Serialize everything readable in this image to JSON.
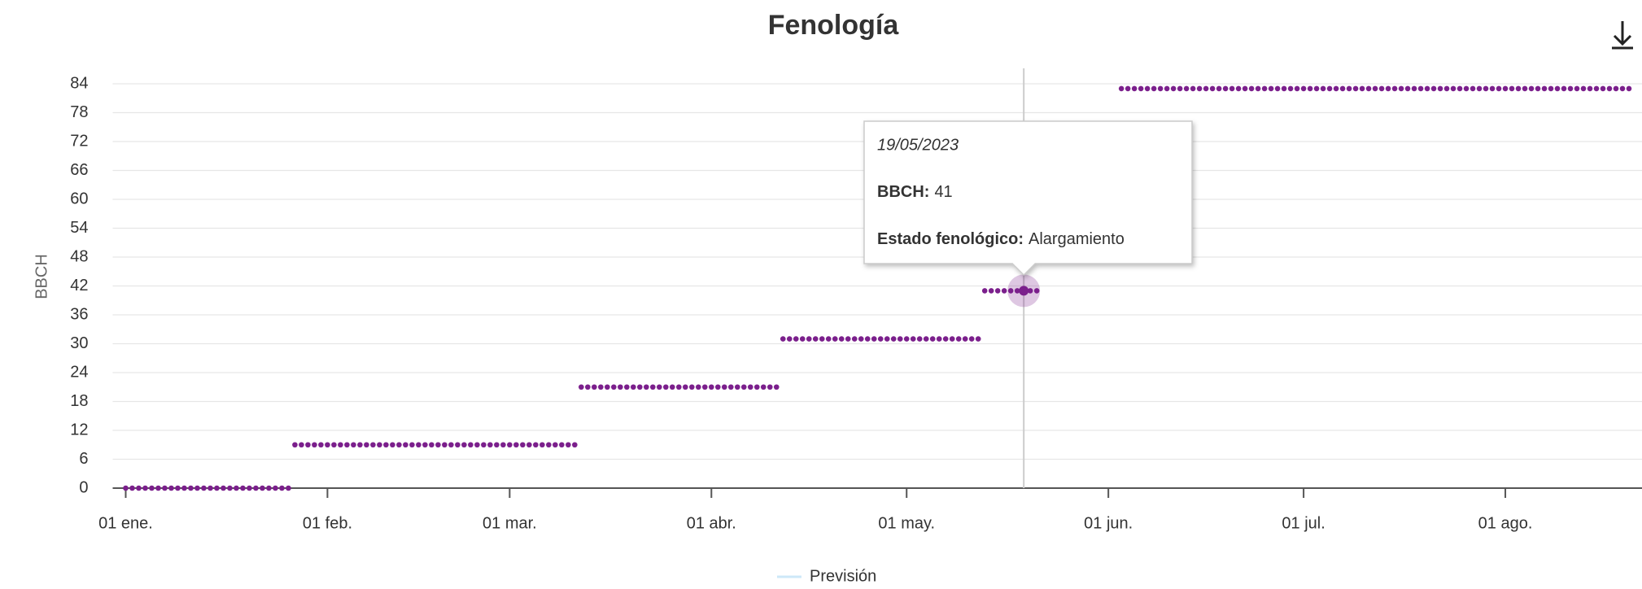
{
  "chart_data": {
    "type": "scatter",
    "title": "Fenología",
    "y_label": "BBCH",
    "series": [
      {
        "color": "#7b1f8c",
        "x": [
          "2023-01-01",
          "2023-01-02",
          "2023-01-03",
          "2023-01-04",
          "2023-01-05",
          "2023-01-06",
          "2023-01-07",
          "2023-01-08",
          "2023-01-09",
          "2023-01-10",
          "2023-01-11",
          "2023-01-12",
          "2023-01-13",
          "2023-01-14",
          "2023-01-15",
          "2023-01-16",
          "2023-01-17",
          "2023-01-18",
          "2023-01-19",
          "2023-01-20",
          "2023-01-21",
          "2023-01-22",
          "2023-01-23",
          "2023-01-24",
          "2023-01-25",
          "2023-01-26",
          "2023-01-27",
          "2023-01-28",
          "2023-01-29",
          "2023-01-30",
          "2023-01-31",
          "2023-02-01",
          "2023-02-02",
          "2023-02-03",
          "2023-02-04",
          "2023-02-05",
          "2023-02-06",
          "2023-02-07",
          "2023-02-08",
          "2023-02-09",
          "2023-02-10",
          "2023-02-11",
          "2023-02-12",
          "2023-02-13",
          "2023-02-14",
          "2023-02-15",
          "2023-02-16",
          "2023-02-17",
          "2023-02-18",
          "2023-02-19",
          "2023-02-20",
          "2023-02-21",
          "2023-02-22",
          "2023-02-23",
          "2023-02-24",
          "2023-02-25",
          "2023-02-26",
          "2023-02-27",
          "2023-02-28",
          "2023-03-01",
          "2023-03-02",
          "2023-03-03",
          "2023-03-04",
          "2023-03-05",
          "2023-03-06",
          "2023-03-07",
          "2023-03-08",
          "2023-03-09",
          "2023-03-10",
          "2023-03-11",
          "2023-03-12",
          "2023-03-13",
          "2023-03-14",
          "2023-03-15",
          "2023-03-16",
          "2023-03-17",
          "2023-03-18",
          "2023-03-19",
          "2023-03-20",
          "2023-03-21",
          "2023-03-22",
          "2023-03-23",
          "2023-03-24",
          "2023-03-25",
          "2023-03-26",
          "2023-03-27",
          "2023-03-28",
          "2023-03-29",
          "2023-03-30",
          "2023-03-31",
          "2023-04-01",
          "2023-04-02",
          "2023-04-03",
          "2023-04-04",
          "2023-04-05",
          "2023-04-06",
          "2023-04-07",
          "2023-04-08",
          "2023-04-09",
          "2023-04-10",
          "2023-04-11",
          "2023-04-12",
          "2023-04-13",
          "2023-04-14",
          "2023-04-15",
          "2023-04-16",
          "2023-04-17",
          "2023-04-18",
          "2023-04-19",
          "2023-04-20",
          "2023-04-21",
          "2023-04-22",
          "2023-04-23",
          "2023-04-24",
          "2023-04-25",
          "2023-04-26",
          "2023-04-27",
          "2023-04-28",
          "2023-04-29",
          "2023-04-30",
          "2023-05-01",
          "2023-05-02",
          "2023-05-03",
          "2023-05-04",
          "2023-05-05",
          "2023-05-06",
          "2023-05-07",
          "2023-05-08",
          "2023-05-09",
          "2023-05-10",
          "2023-05-11",
          "2023-05-12",
          "2023-05-13",
          "2023-05-14",
          "2023-05-15",
          "2023-05-16",
          "2023-05-17",
          "2023-05-18",
          "2023-05-19",
          "2023-05-20",
          "2023-05-21",
          "2023-06-03",
          "2023-06-04",
          "2023-06-05",
          "2023-06-06",
          "2023-06-07",
          "2023-06-08",
          "2023-06-09",
          "2023-06-10",
          "2023-06-11",
          "2023-06-12",
          "2023-06-13",
          "2023-06-14",
          "2023-06-15",
          "2023-06-16",
          "2023-06-17",
          "2023-06-18",
          "2023-06-19",
          "2023-06-20",
          "2023-06-21",
          "2023-06-22",
          "2023-06-23",
          "2023-06-24",
          "2023-06-25",
          "2023-06-26",
          "2023-06-27",
          "2023-06-28",
          "2023-06-29",
          "2023-06-30",
          "2023-07-01",
          "2023-07-02",
          "2023-07-03",
          "2023-07-04",
          "2023-07-05",
          "2023-07-06",
          "2023-07-07",
          "2023-07-08",
          "2023-07-09",
          "2023-07-10",
          "2023-07-11",
          "2023-07-12",
          "2023-07-13",
          "2023-07-14",
          "2023-07-15",
          "2023-07-16",
          "2023-07-17",
          "2023-07-18",
          "2023-07-19",
          "2023-07-20",
          "2023-07-21",
          "2023-07-22",
          "2023-07-23",
          "2023-07-24",
          "2023-07-25",
          "2023-07-26",
          "2023-07-27",
          "2023-07-28",
          "2023-07-29",
          "2023-07-30",
          "2023-07-31",
          "2023-08-01",
          "2023-08-02",
          "2023-08-03",
          "2023-08-04",
          "2023-08-05",
          "2023-08-06",
          "2023-08-07",
          "2023-08-08",
          "2023-08-09",
          "2023-08-10",
          "2023-08-11",
          "2023-08-12",
          "2023-08-13",
          "2023-08-14",
          "2023-08-15",
          "2023-08-16",
          "2023-08-17",
          "2023-08-18",
          "2023-08-19",
          "2023-08-20"
        ],
        "values": [
          0,
          0,
          0,
          0,
          0,
          0,
          0,
          0,
          0,
          0,
          0,
          0,
          0,
          0,
          0,
          0,
          0,
          0,
          0,
          0,
          0,
          0,
          0,
          0,
          0,
          0,
          9,
          9,
          9,
          9,
          9,
          9,
          9,
          9,
          9,
          9,
          9,
          9,
          9,
          9,
          9,
          9,
          9,
          9,
          9,
          9,
          9,
          9,
          9,
          9,
          9,
          9,
          9,
          9,
          9,
          9,
          9,
          9,
          9,
          9,
          9,
          9,
          9,
          9,
          9,
          9,
          9,
          9,
          9,
          9,
          21,
          21,
          21,
          21,
          21,
          21,
          21,
          21,
          21,
          21,
          21,
          21,
          21,
          21,
          21,
          21,
          21,
          21,
          21,
          21,
          21,
          21,
          21,
          21,
          21,
          21,
          21,
          21,
          21,
          21,
          21,
          31,
          31,
          31,
          31,
          31,
          31,
          31,
          31,
          31,
          31,
          31,
          31,
          31,
          31,
          31,
          31,
          31,
          31,
          31,
          31,
          31,
          31,
          31,
          31,
          31,
          31,
          31,
          31,
          31,
          31,
          31,
          41,
          41,
          41,
          41,
          41,
          41,
          41,
          41,
          41,
          83,
          83,
          83,
          83,
          83,
          83,
          83,
          83,
          83,
          83,
          83,
          83,
          83,
          83,
          83,
          83,
          83,
          83,
          83,
          83,
          83,
          83,
          83,
          83,
          83,
          83,
          83,
          83,
          83,
          83,
          83,
          83,
          83,
          83,
          83,
          83,
          83,
          83,
          83,
          83,
          83,
          83,
          83,
          83,
          83,
          83,
          83,
          83,
          83,
          83,
          83,
          83,
          83,
          83,
          83,
          83,
          83,
          83,
          83,
          83,
          83,
          83,
          83,
          83,
          83,
          83,
          83,
          83,
          83,
          83,
          83,
          83,
          83,
          83,
          83,
          83,
          83,
          83,
          83
        ]
      }
    ],
    "xlim": [
      "2022-12-30",
      "2023-08-22"
    ],
    "xticks": [
      {
        "value": "2023-01-01",
        "label": "01 ene."
      },
      {
        "value": "2023-02-01",
        "label": "01 feb."
      },
      {
        "value": "2023-03-01",
        "label": "01 mar."
      },
      {
        "value": "2023-04-01",
        "label": "01 abr."
      },
      {
        "value": "2023-05-01",
        "label": "01 may."
      },
      {
        "value": "2023-06-01",
        "label": "01 jun."
      },
      {
        "value": "2023-07-01",
        "label": "01 jul."
      },
      {
        "value": "2023-08-01",
        "label": "01 ago."
      }
    ],
    "ylim": [
      0,
      84
    ],
    "yticks": [
      0,
      6,
      12,
      18,
      24,
      30,
      36,
      42,
      48,
      54,
      60,
      66,
      72,
      78,
      84
    ],
    "grid": true,
    "legend": [
      {
        "name": "Previsión",
        "color": "#cde8f8"
      }
    ],
    "tooltip": {
      "point": 138,
      "date": "19/05/2023",
      "bbch_label": "BBCH:",
      "state_label": "Estado fenológico:",
      "state": "Alargamiento"
    }
  }
}
